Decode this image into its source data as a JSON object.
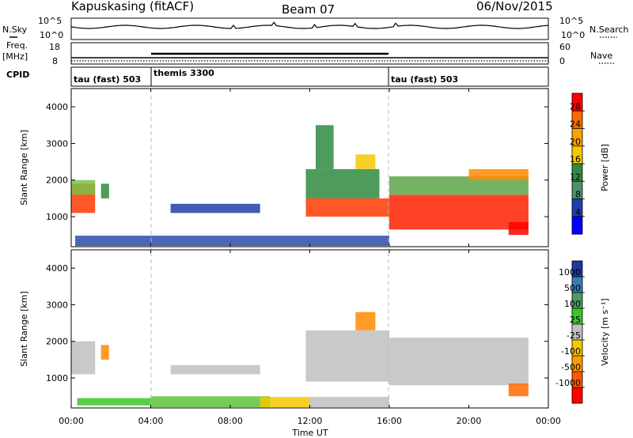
{
  "header": {
    "station": "Kapuskasing (fitACF)",
    "beam": "Beam 07",
    "date": "06/Nov/2015"
  },
  "side_labels": {
    "nsky": "N.Sky",
    "nsearch": "N.Search",
    "freq": "Freq.",
    "freq_unit": "[MHz]",
    "nave": "Nave",
    "cpid": "CPID"
  },
  "noise_panel": {
    "left_ticks": [
      "10^5",
      "10^0"
    ],
    "right_ticks": [
      "10^5",
      "10^0"
    ]
  },
  "freq_panel": {
    "left_ticks": [
      "18",
      "8"
    ],
    "right_ticks": [
      "60",
      "0"
    ]
  },
  "cpid_panel": {
    "segments": [
      {
        "label": "tau (fast) 503",
        "start_h": 0,
        "end_h": 4
      },
      {
        "label": "themis 3300",
        "start_h": 4,
        "end_h": 16
      },
      {
        "label": "tau (fast) 503",
        "start_h": 16,
        "end_h": 24
      }
    ]
  },
  "x_axis": {
    "label": "Time UT",
    "ticks": [
      "00:00",
      "04:00",
      "08:00",
      "12:00",
      "16:00",
      "20:00",
      "00:00"
    ]
  },
  "chart_data": [
    {
      "type": "heatmap",
      "ylabel": "Slant Range [km]",
      "yticks": [
        "4000",
        "3000",
        "2000",
        "1000"
      ],
      "ytick_values": [
        4000,
        3000,
        2000,
        1000
      ],
      "ylim": [
        180,
        4500
      ],
      "xlim": [
        0,
        24
      ],
      "colorbar_label": "Power [dB]",
      "colorbar_ticks": [
        "28",
        "24",
        "20",
        "16",
        "12",
        "8",
        "4"
      ],
      "colorbar_colors": [
        "#ff0000",
        "#ff6a00",
        "#ff9f00",
        "#f5c800",
        "#2e8b3f",
        "#4f8f6a",
        "#1e3fa8",
        "#0000ff"
      ],
      "regions": [
        {
          "t0": 0.0,
          "t1": 1.2,
          "r0": 1100,
          "r1": 1900,
          "color": "#ff3a00"
        },
        {
          "t0": 0.0,
          "t1": 1.2,
          "r0": 1600,
          "r1": 2000,
          "color": "#7ac14a"
        },
        {
          "t0": 1.5,
          "t1": 1.9,
          "r0": 1500,
          "r1": 1900,
          "color": "#2e8b3f"
        },
        {
          "t0": 0.2,
          "t1": 16.0,
          "r0": 200,
          "r1": 480,
          "color": "#2a4ca8"
        },
        {
          "t0": 5.0,
          "t1": 9.5,
          "r0": 1100,
          "r1": 1350,
          "color": "#1e3fa8"
        },
        {
          "t0": 11.8,
          "t1": 16.0,
          "r0": 1000,
          "r1": 1500,
          "color": "#ff3a00"
        },
        {
          "t0": 11.8,
          "t1": 15.5,
          "r0": 1500,
          "r1": 2300,
          "color": "#2e8b3f"
        },
        {
          "t0": 12.3,
          "t1": 13.2,
          "r0": 2300,
          "r1": 3500,
          "color": "#2e8b3f"
        },
        {
          "t0": 14.3,
          "t1": 15.3,
          "r0": 2300,
          "r1": 2700,
          "color": "#f5c800"
        },
        {
          "t0": 16.0,
          "t1": 23.0,
          "r0": 650,
          "r1": 1600,
          "color": "#ff2000"
        },
        {
          "t0": 16.0,
          "t1": 23.0,
          "r0": 1600,
          "r1": 2100,
          "color": "#5aa648"
        },
        {
          "t0": 20.0,
          "t1": 23.0,
          "r0": 2000,
          "r1": 2300,
          "color": "#ff8a00"
        },
        {
          "t0": 22.0,
          "t1": 23.0,
          "r0": 500,
          "r1": 850,
          "color": "#ff0000"
        }
      ]
    },
    {
      "type": "heatmap",
      "ylabel": "Slant Range [km]",
      "yticks": [
        "4000",
        "3000",
        "2000",
        "1000"
      ],
      "ytick_values": [
        4000,
        3000,
        2000,
        1000
      ],
      "ylim": [
        180,
        4500
      ],
      "xlim": [
        0,
        24
      ],
      "colorbar_label": "Velocity [m s⁻¹]",
      "colorbar_ticks": [
        "1000",
        "500",
        "100",
        "25",
        "-25",
        "-100",
        "-500",
        "-1000"
      ],
      "colorbar_colors": [
        "#1a3a9e",
        "#3a78b8",
        "#4f9a62",
        "#39c826",
        "#c0c0c0",
        "#f5c800",
        "#ff9a00",
        "#ff5a00",
        "#ff0000"
      ],
      "regions": [
        {
          "t0": 0.0,
          "t1": 1.2,
          "r0": 1100,
          "r1": 2000,
          "color": "#c0c0c0"
        },
        {
          "t0": 1.5,
          "t1": 1.9,
          "r0": 1500,
          "r1": 1900,
          "color": "#ff8a00"
        },
        {
          "t0": 0.3,
          "t1": 4.0,
          "r0": 250,
          "r1": 450,
          "color": "#39c826"
        },
        {
          "t0": 4.0,
          "t1": 10.0,
          "r0": 200,
          "r1": 500,
          "color": "#5cc43a"
        },
        {
          "t0": 9.5,
          "t1": 12.0,
          "r0": 200,
          "r1": 480,
          "color": "#f5c800"
        },
        {
          "t0": 12.0,
          "t1": 16.0,
          "r0": 200,
          "r1": 480,
          "color": "#c0c0c0"
        },
        {
          "t0": 5.0,
          "t1": 9.5,
          "r0": 1100,
          "r1": 1350,
          "color": "#c0c0c0"
        },
        {
          "t0": 11.8,
          "t1": 16.0,
          "r0": 900,
          "r1": 2300,
          "color": "#c0c0c0"
        },
        {
          "t0": 14.3,
          "t1": 15.3,
          "r0": 2300,
          "r1": 2800,
          "color": "#ff8a00"
        },
        {
          "t0": 16.0,
          "t1": 23.0,
          "r0": 800,
          "r1": 2100,
          "color": "#c0c0c0"
        },
        {
          "t0": 22.0,
          "t1": 23.0,
          "r0": 500,
          "r1": 850,
          "color": "#ff6a00"
        }
      ]
    }
  ]
}
